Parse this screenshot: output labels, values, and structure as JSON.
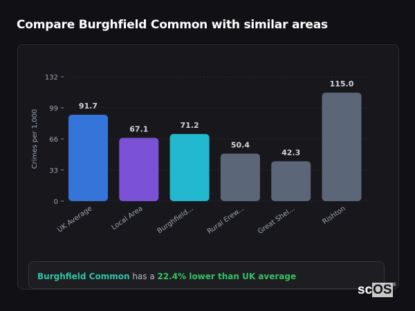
{
  "title": "Compare Burghfield Common with similar areas",
  "chart_data": {
    "type": "bar",
    "ylabel": "Crimes per 1,000",
    "xlabel": "",
    "ylim": [
      0,
      132
    ],
    "yticks": [
      0,
      33,
      66,
      99,
      132
    ],
    "grid": true,
    "categories": [
      "UK Average",
      "Local Area",
      "Burghfield...",
      "Rural Erew...",
      "Great Shel...",
      "Rishton"
    ],
    "values": [
      91.7,
      67.1,
      71.2,
      50.4,
      42.3,
      115.0
    ],
    "data_labels": [
      "91.7",
      "67.1",
      "71.2",
      "50.4",
      "42.3",
      "115.0"
    ],
    "colors": [
      "#3574d8",
      "#7b52d6",
      "#22b8cf",
      "#5b6678",
      "#5b6678",
      "#5b6678"
    ]
  },
  "summary": {
    "area": "Burghfield Common",
    "middle": " has a ",
    "comparison": "22.4% lower than UK average"
  },
  "watermark": {
    "prefix": "sc",
    "box": "OS",
    "mark": "®"
  }
}
